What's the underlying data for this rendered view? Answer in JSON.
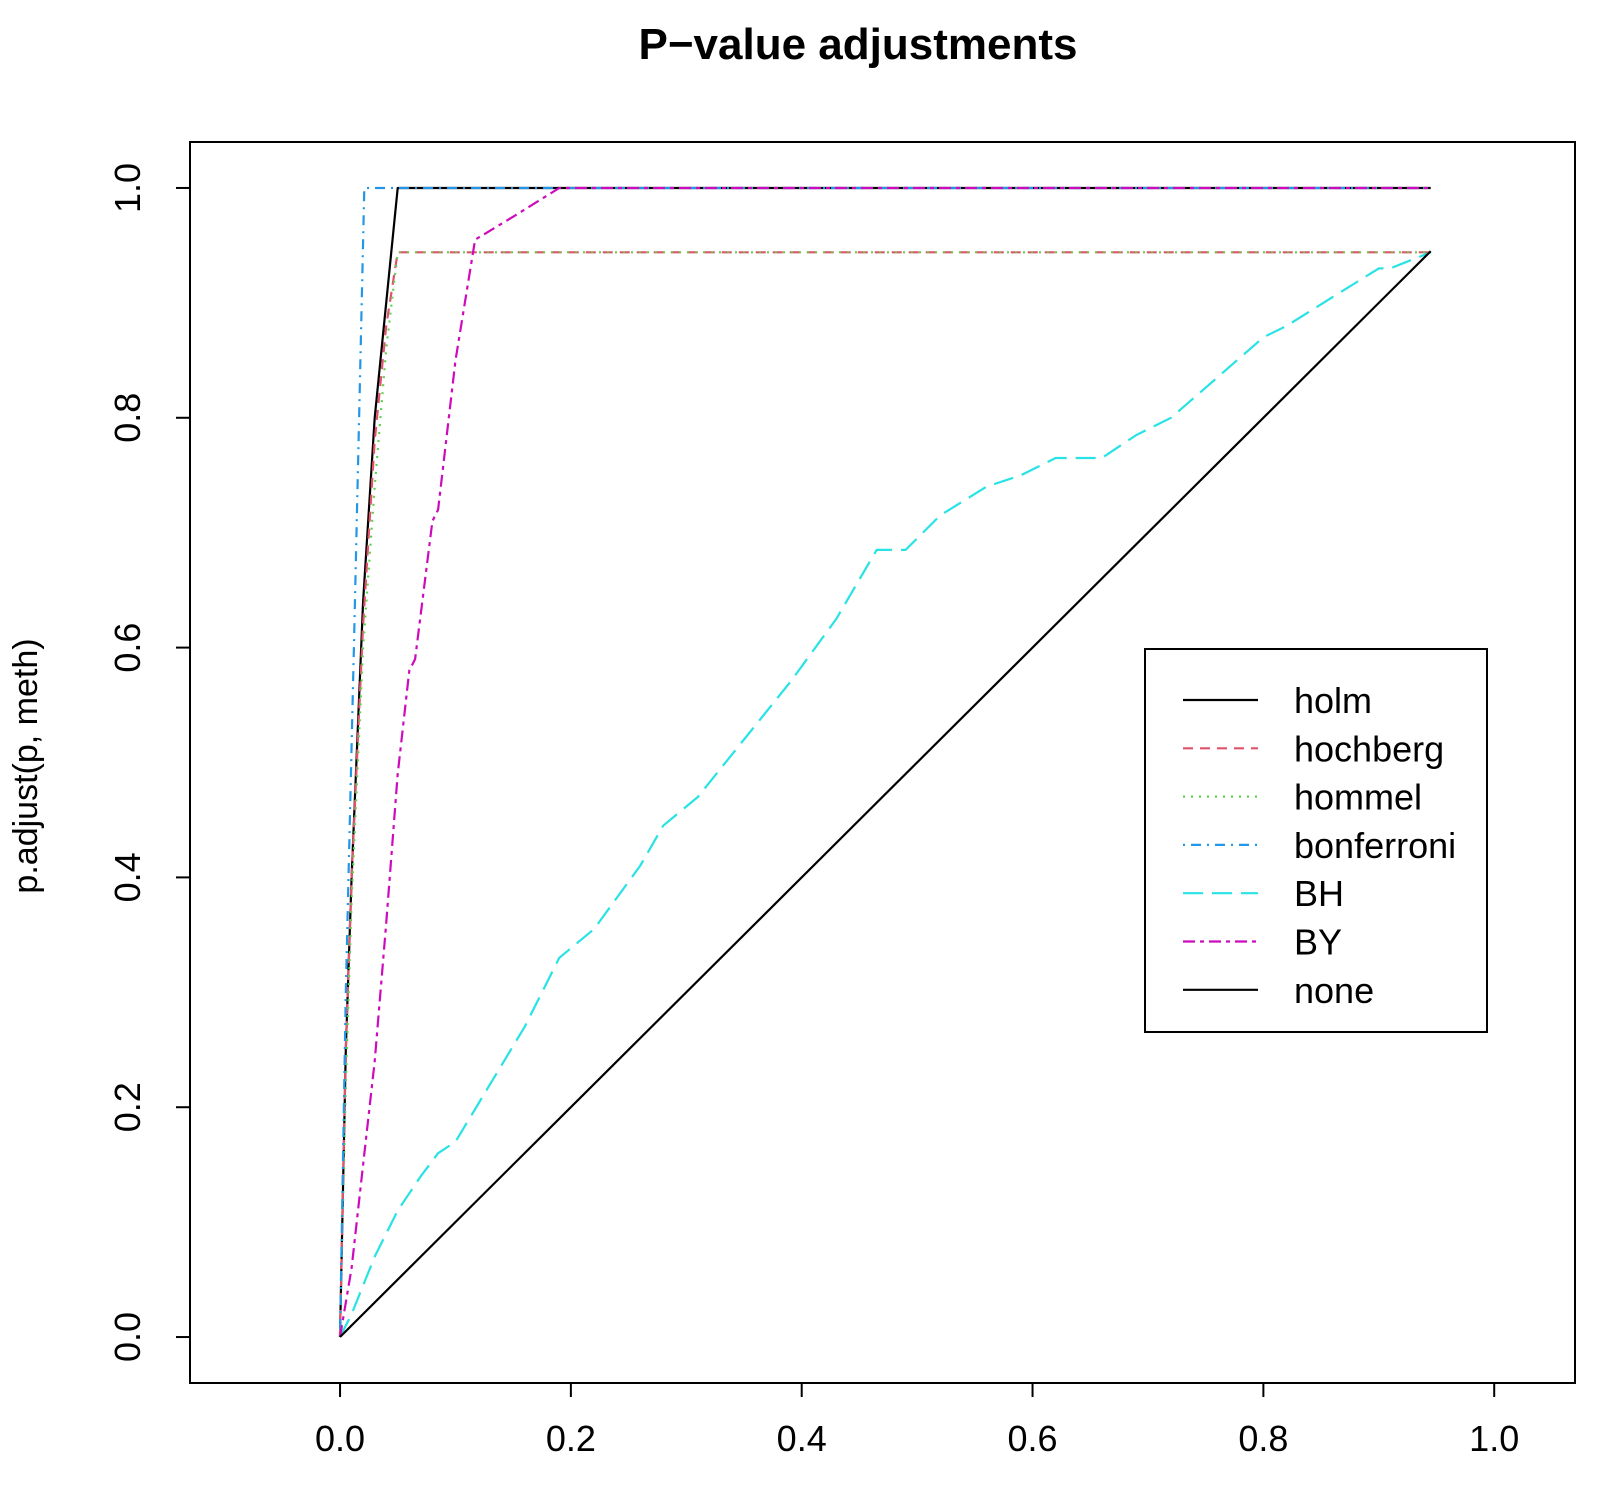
{
  "chart_data": {
    "type": "line",
    "title": "P−value adjustments",
    "xlabel": "",
    "ylabel": "p.adjust(p, meth)",
    "xlim": [
      -0.13,
      1.07
    ],
    "ylim": [
      -0.04,
      1.04
    ],
    "x_ticks": [
      0.0,
      0.2,
      0.4,
      0.6,
      0.8,
      1.0
    ],
    "x_tick_labels": [
      "0.0",
      "0.2",
      "0.4",
      "0.6",
      "0.8",
      "1.0"
    ],
    "y_ticks": [
      0.0,
      0.2,
      0.4,
      0.6,
      0.8,
      1.0
    ],
    "y_tick_labels": [
      "0.0",
      "0.2",
      "0.4",
      "0.6",
      "0.8",
      "1.0"
    ],
    "grid": false,
    "legend_position": "right",
    "series": [
      {
        "name": "holm",
        "color": "#000000",
        "dash": "solid",
        "points": [
          [
            0,
            0
          ],
          [
            0.005,
            0.25
          ],
          [
            0.01,
            0.4
          ],
          [
            0.02,
            0.64
          ],
          [
            0.03,
            0.8
          ],
          [
            0.04,
            0.9
          ],
          [
            0.05,
            1.0
          ],
          [
            0.945,
            1.0
          ]
        ]
      },
      {
        "name": "hochberg",
        "color": "#DF536B",
        "dash": "dashed",
        "points": [
          [
            0,
            0
          ],
          [
            0.005,
            0.25
          ],
          [
            0.01,
            0.4
          ],
          [
            0.02,
            0.62
          ],
          [
            0.03,
            0.78
          ],
          [
            0.04,
            0.88
          ],
          [
            0.05,
            0.944
          ],
          [
            0.945,
            0.944
          ]
        ]
      },
      {
        "name": "hommel",
        "color": "#61D04F",
        "dash": "dotted",
        "points": [
          [
            0,
            0
          ],
          [
            0.005,
            0.22
          ],
          [
            0.01,
            0.38
          ],
          [
            0.02,
            0.6
          ],
          [
            0.03,
            0.74
          ],
          [
            0.04,
            0.86
          ],
          [
            0.05,
            0.944
          ],
          [
            0.945,
            0.944
          ]
        ]
      },
      {
        "name": "bonferroni",
        "color": "#2297E6",
        "dash": "dotdash",
        "points": [
          [
            0,
            0
          ],
          [
            0.005,
            0.3
          ],
          [
            0.012,
            0.6
          ],
          [
            0.021,
            1.0
          ],
          [
            0.945,
            1.0
          ]
        ]
      },
      {
        "name": "BH",
        "color": "#28E2E5",
        "dash": "longdash",
        "points": [
          [
            0,
            0
          ],
          [
            0.01,
            0.02
          ],
          [
            0.03,
            0.07
          ],
          [
            0.05,
            0.11
          ],
          [
            0.07,
            0.14
          ],
          [
            0.085,
            0.16
          ],
          [
            0.1,
            0.17
          ],
          [
            0.13,
            0.22
          ],
          [
            0.16,
            0.27
          ],
          [
            0.19,
            0.33
          ],
          [
            0.22,
            0.355
          ],
          [
            0.26,
            0.41
          ],
          [
            0.28,
            0.445
          ],
          [
            0.31,
            0.47
          ],
          [
            0.35,
            0.52
          ],
          [
            0.39,
            0.57
          ],
          [
            0.43,
            0.625
          ],
          [
            0.465,
            0.685
          ],
          [
            0.49,
            0.685
          ],
          [
            0.52,
            0.715
          ],
          [
            0.56,
            0.74
          ],
          [
            0.59,
            0.75
          ],
          [
            0.62,
            0.765
          ],
          [
            0.66,
            0.765
          ],
          [
            0.69,
            0.785
          ],
          [
            0.72,
            0.8
          ],
          [
            0.76,
            0.835
          ],
          [
            0.8,
            0.87
          ],
          [
            0.82,
            0.88
          ],
          [
            0.86,
            0.905
          ],
          [
            0.9,
            0.93
          ],
          [
            0.91,
            0.93
          ],
          [
            0.945,
            0.944
          ]
        ]
      },
      {
        "name": "BY",
        "color": "#CD0BBC",
        "dash": "twodash",
        "points": [
          [
            0,
            0
          ],
          [
            0.01,
            0.06
          ],
          [
            0.02,
            0.15
          ],
          [
            0.03,
            0.24
          ],
          [
            0.04,
            0.36
          ],
          [
            0.05,
            0.49
          ],
          [
            0.06,
            0.58
          ],
          [
            0.065,
            0.59
          ],
          [
            0.08,
            0.71
          ],
          [
            0.085,
            0.72
          ],
          [
            0.1,
            0.85
          ],
          [
            0.117,
            0.955
          ],
          [
            0.15,
            0.975
          ],
          [
            0.19,
            1.0
          ],
          [
            0.945,
            1.0
          ]
        ]
      },
      {
        "name": "none",
        "color": "#000000",
        "dash": "solid",
        "points": [
          [
            0,
            0
          ],
          [
            0.945,
            0.945
          ]
        ]
      }
    ]
  }
}
